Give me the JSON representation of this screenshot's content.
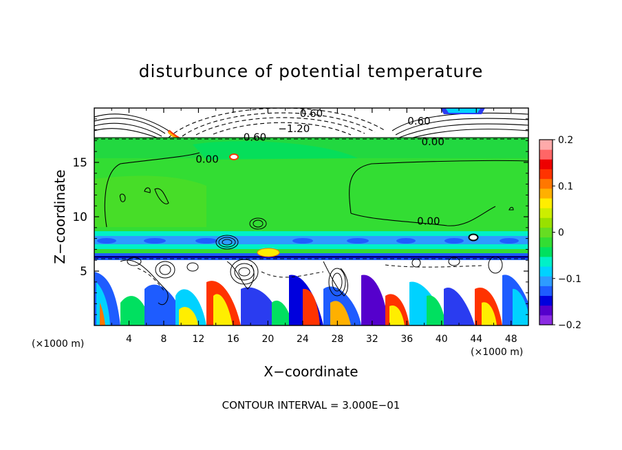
{
  "chart_data": {
    "type": "heatmap",
    "title": "disturbunce of potential temperature",
    "xlabel": "X−coordinate",
    "ylabel": "Z−coordinate",
    "x_unit_left": "(×1000 m)",
    "x_unit_right": "(×1000 m)",
    "xlim": [
      0,
      50
    ],
    "ylim": [
      0,
      20
    ],
    "x_ticks": [
      "4",
      "8",
      "12",
      "16",
      "20",
      "24",
      "28",
      "32",
      "36",
      "40",
      "44",
      "48"
    ],
    "x_tick_values": [
      4,
      8,
      12,
      16,
      20,
      24,
      28,
      32,
      36,
      40,
      44,
      48
    ],
    "y_ticks": [
      "5",
      "10",
      "15"
    ],
    "y_tick_values": [
      5,
      10,
      15
    ],
    "colorbar": {
      "min": -0.2,
      "max": 0.2,
      "tick_labels": [
        "0.2",
        "0.1",
        "0",
        "−0.1",
        "−0.2"
      ],
      "tick_values": [
        0.2,
        0.1,
        0,
        -0.1,
        -0.2
      ],
      "colors": [
        "#8a2be2",
        "#5500cc",
        "#0000dd",
        "#1e5cff",
        "#2e9bff",
        "#00d2ff",
        "#00f0c8",
        "#00e060",
        "#33dd33",
        "#66dd22",
        "#99e000",
        "#ccee00",
        "#ffee00",
        "#ffb000",
        "#ff7700",
        "#ff3300",
        "#ee0000",
        "#ff6666",
        "#ffaaaa"
      ]
    },
    "contour_labels": [
      {
        "text": "0.60",
        "x": 25.0,
        "z": 19.5
      },
      {
        "text": "0.60",
        "x": 37.4,
        "z": 18.8
      },
      {
        "text": "−1.20",
        "x": 23.0,
        "z": 18.1
      },
      {
        "text": "0.60",
        "x": 18.5,
        "z": 17.3
      },
      {
        "text": "0.00",
        "x": 39.0,
        "z": 16.9
      },
      {
        "text": "0.00",
        "x": 13.0,
        "z": 15.3
      },
      {
        "text": "0.00",
        "x": 38.5,
        "z": 9.6
      }
    ],
    "footer": "CONTOUR INTERVAL =  3.000E−01",
    "grid": false
  }
}
